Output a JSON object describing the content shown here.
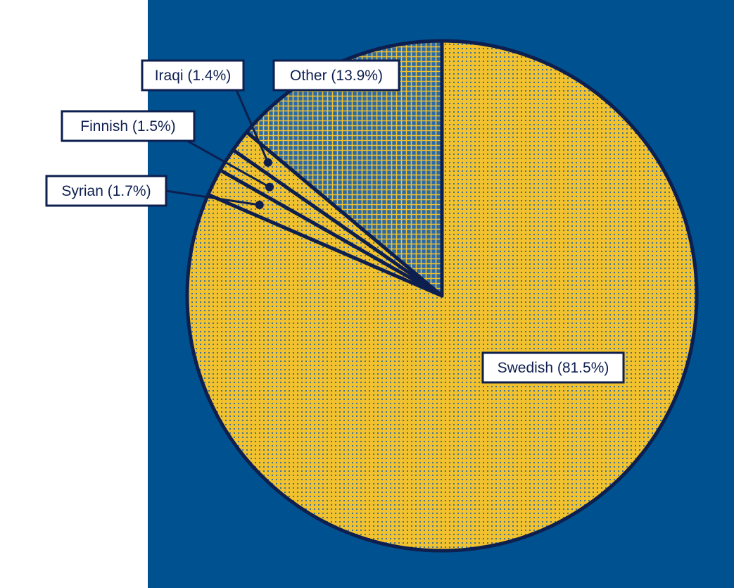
{
  "colors": {
    "background_panel": "#00518f",
    "outline": "#0d1f4f",
    "slice_fill": "#f2c12e",
    "slice_dot": "#2a6aa8",
    "other_fill": "#2a6aa8",
    "other_hatch": "#f2c12e",
    "label_bg": "#ffffff"
  },
  "chart_data": {
    "type": "pie",
    "title": "",
    "start_angle_deg": 0,
    "direction": "clockwise",
    "slices": [
      {
        "name": "Swedish",
        "value": 81.5,
        "label": "Swedish (81.5%)",
        "pattern": "dots"
      },
      {
        "name": "Syrian",
        "value": 1.7,
        "label": "Syrian (1.7%)",
        "pattern": "dots"
      },
      {
        "name": "Finnish",
        "value": 1.5,
        "label": "Finnish (1.5%)",
        "pattern": "dots"
      },
      {
        "name": "Iraqi",
        "value": 1.4,
        "label": "Iraqi (1.4%)",
        "pattern": "dots"
      },
      {
        "name": "Other",
        "value": 13.9,
        "label": "Other (13.9%)",
        "pattern": "crosshatch"
      }
    ]
  }
}
